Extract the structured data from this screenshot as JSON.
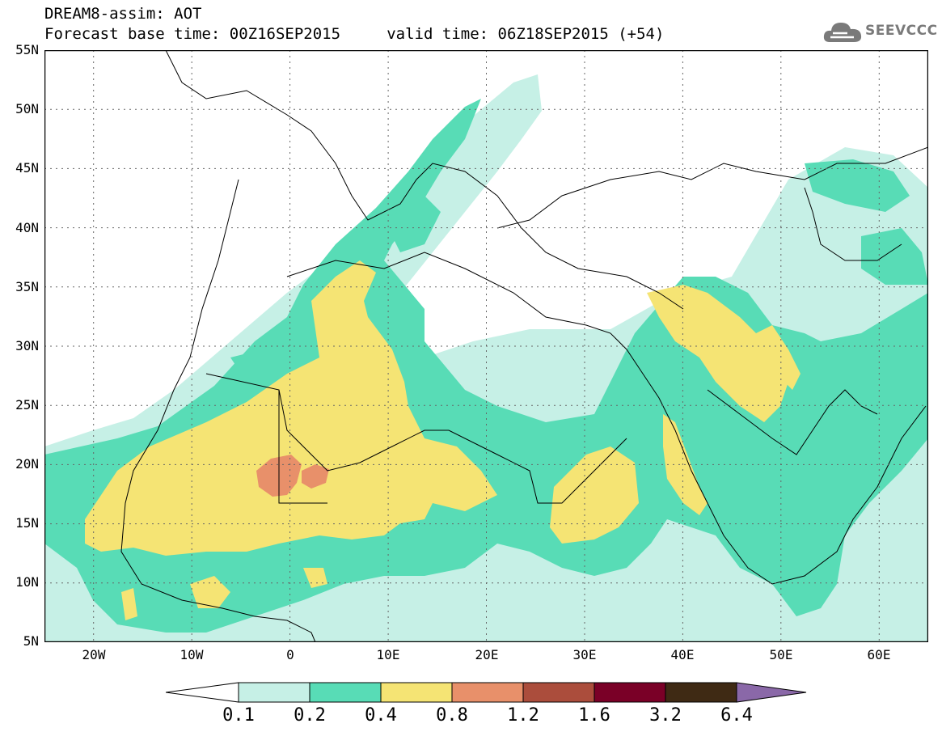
{
  "header": {
    "title": "DREAM8-assim: AOT",
    "subtitle": "Forecast base time: 00Z16SEP2015     valid time: 06Z18SEP2015 (+54)"
  },
  "logo": {
    "text": "SEEVCCC",
    "icon": "cloud-logo-icon"
  },
  "map": {
    "variable": "AOT",
    "lon_range": [
      -25,
      65
    ],
    "lat_range": [
      5,
      55
    ],
    "y_ticks": [
      "55N",
      "50N",
      "45N",
      "40N",
      "35N",
      "30N",
      "25N",
      "20N",
      "15N",
      "10N",
      "5N"
    ],
    "x_ticks": [
      "20W",
      "10W",
      "0",
      "10E",
      "20E",
      "30E",
      "40E",
      "50E",
      "60E"
    ],
    "grid": "dotted"
  },
  "colorbar": {
    "labels": [
      "0.1",
      "0.2",
      "0.4",
      "0.8",
      "1.2",
      "1.6",
      "3.2",
      "6.4"
    ],
    "colors": [
      "#ffffff",
      "#c6f0e6",
      "#58dcb6",
      "#f5e474",
      "#e8906a",
      "#ab4d3c",
      "#7a0027",
      "#3f2a14",
      "#8a68a8"
    ]
  },
  "palette": {
    "c01": "#c6f0e6",
    "c02": "#58dcb6",
    "c04": "#f5e474",
    "c08": "#e8906a"
  }
}
